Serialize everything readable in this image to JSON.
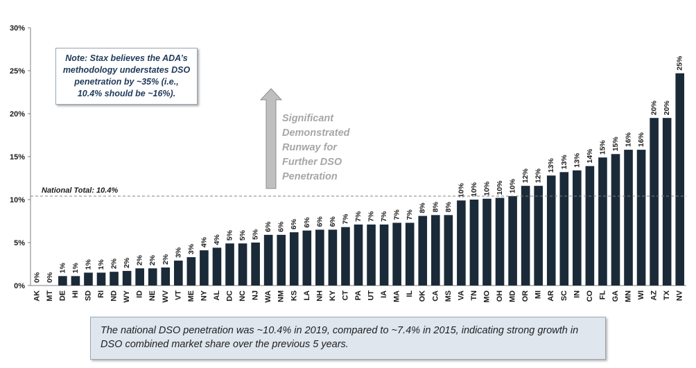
{
  "chart_data": {
    "type": "bar",
    "categories": [
      "AK",
      "MT",
      "DE",
      "HI",
      "SD",
      "RI",
      "ND",
      "WY",
      "ID",
      "NE",
      "WV",
      "VT",
      "ME",
      "NY",
      "AL",
      "DC",
      "NC",
      "NJ",
      "WA",
      "NM",
      "KS",
      "LA",
      "NH",
      "KY",
      "CT",
      "PA",
      "UT",
      "IA",
      "MA",
      "IL",
      "OK",
      "CA",
      "MS",
      "VA",
      "TN",
      "MO",
      "OH",
      "MD",
      "OR",
      "MI",
      "AR",
      "SC",
      "IN",
      "CO",
      "FL",
      "GA",
      "MN",
      "WI",
      "AZ",
      "TX",
      "NV"
    ],
    "values": [
      0.0,
      0.0,
      1.1,
      1.1,
      1.5,
      1.5,
      1.6,
      1.7,
      2.0,
      2.0,
      2.1,
      2.9,
      3.3,
      4.1,
      4.4,
      4.9,
      4.9,
      5.0,
      5.9,
      5.9,
      6.2,
      6.4,
      6.5,
      6.5,
      6.8,
      7.1,
      7.1,
      7.1,
      7.3,
      7.3,
      8.1,
      8.2,
      8.2,
      9.9,
      10.0,
      10.1,
      10.2,
      10.4,
      11.6,
      11.6,
      12.8,
      13.2,
      13.4,
      13.9,
      14.9,
      15.3,
      15.8,
      15.8,
      19.5,
      19.5,
      24.7
    ],
    "data_labels": [
      "0%",
      "0%",
      "1%",
      "1%",
      "1%",
      "1%",
      "2%",
      "2%",
      "2%",
      "2%",
      "2%",
      "3%",
      "3%",
      "4%",
      "4%",
      "5%",
      "5%",
      "5%",
      "6%",
      "6%",
      "6%",
      "6%",
      "6%",
      "6%",
      "7%",
      "7%",
      "7%",
      "7%",
      "7%",
      "7%",
      "8%",
      "8%",
      "8%",
      "10%",
      "10%",
      "10%",
      "10%",
      "10%",
      "12%",
      "12%",
      "13%",
      "13%",
      "13%",
      "14%",
      "15%",
      "15%",
      "16%",
      "16%",
      "20%",
      "20%",
      "25%"
    ],
    "yticks": [
      "0%",
      "5%",
      "10%",
      "15%",
      "20%",
      "25%",
      "30%"
    ],
    "ylim": [
      0,
      30
    ],
    "reference_line": {
      "value": 10.4,
      "label": "National Total: 10.4%"
    },
    "title": "",
    "xlabel": "",
    "ylabel": "",
    "arrow_text": [
      "Significant",
      "Demonstrated",
      "Runway for",
      "Further DSO",
      "Penetration"
    ],
    "colors": {
      "bar": "#1b2a38",
      "axis": "#7f7f7f",
      "ref_line": "#808080",
      "arrow": "#bfbfbf",
      "arrow_text": "#a6a6a6"
    }
  },
  "note": {
    "lines": [
      "Note: Stax believes the ADA’s",
      "methodology understates DSO",
      "penetration by ~35% (i.e.,",
      "10.4% should be ~16%)."
    ]
  },
  "summary": {
    "text": "The national DSO penetration was ~10.4% in 2019, compared to ~7.4% in 2015, indicating strong growth in DSO combined market share over the previous 5 years."
  }
}
